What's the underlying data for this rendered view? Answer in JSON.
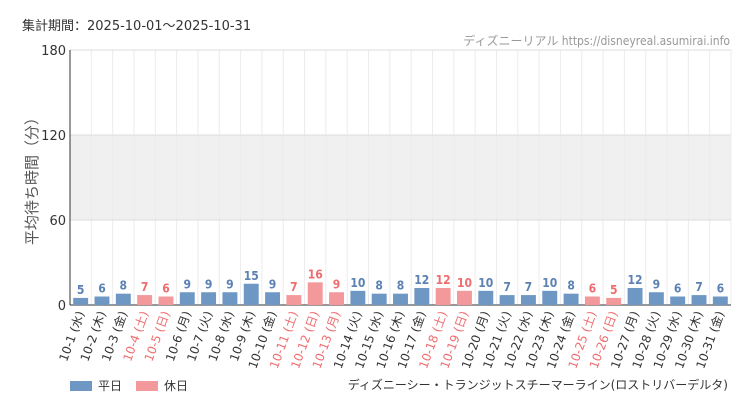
{
  "period_label": "集計期間：2025-10-01〜2025-10-31",
  "site_label": "ディズニーリアル https://disneyreal.asumirai.info",
  "ride_name": "ディズニーシー・トランジットスチーマーライン(ロストリバーデルタ)",
  "colors": {
    "weekday": "#6f97c4",
    "holiday": "#f4999b",
    "weekday_text": "#5b82b3",
    "holiday_text": "#ee6d6f"
  },
  "chart_data": {
    "type": "bar",
    "ylabel": "平均待ち時間（分）",
    "ylim": [
      0,
      180
    ],
    "yticks": [
      0,
      60,
      120,
      180
    ],
    "shaded_band": [
      60,
      120
    ],
    "categories": [
      "10-1 (水)",
      "10-2 (木)",
      "10-3 (金)",
      "10-4 (土)",
      "10-5 (日)",
      "10-6 (月)",
      "10-7 (火)",
      "10-8 (水)",
      "10-9 (木)",
      "10-10 (金)",
      "10-11 (土)",
      "10-12 (日)",
      "10-13 (月)",
      "10-14 (火)",
      "10-15 (水)",
      "10-16 (木)",
      "10-17 (金)",
      "10-18 (土)",
      "10-19 (日)",
      "10-20 (月)",
      "10-21 (火)",
      "10-22 (水)",
      "10-23 (木)",
      "10-24 (金)",
      "10-25 (土)",
      "10-26 (日)",
      "10-27 (月)",
      "10-28 (火)",
      "10-29 (水)",
      "10-30 (木)",
      "10-31 (金)"
    ],
    "values": [
      5,
      6,
      8,
      7,
      6,
      9,
      9,
      9,
      15,
      9,
      7,
      16,
      9,
      10,
      8,
      8,
      12,
      12,
      10,
      10,
      7,
      7,
      10,
      8,
      6,
      5,
      12,
      9,
      6,
      7,
      6
    ],
    "day_type": [
      "平日",
      "平日",
      "平日",
      "休日",
      "休日",
      "平日",
      "平日",
      "平日",
      "平日",
      "平日",
      "休日",
      "休日",
      "休日",
      "平日",
      "平日",
      "平日",
      "平日",
      "休日",
      "休日",
      "平日",
      "平日",
      "平日",
      "平日",
      "平日",
      "休日",
      "休日",
      "平日",
      "平日",
      "平日",
      "平日",
      "平日"
    ],
    "legend": [
      {
        "name": "平日"
      },
      {
        "name": "休日"
      }
    ],
    "legend_position": "bottom-left"
  }
}
